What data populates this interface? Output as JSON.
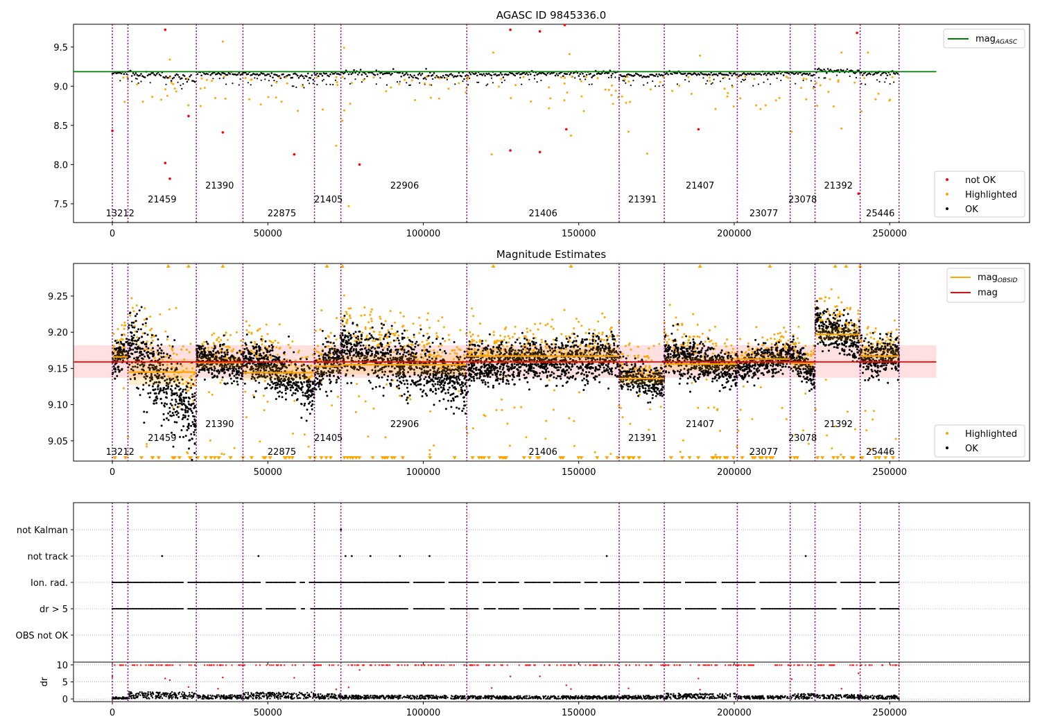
{
  "figure": {
    "title_top": "AGASC ID 9845336.0",
    "title_mid": "Magnitude Estimates"
  },
  "chart_data": [
    {
      "type": "scatter",
      "title": "AGASC ID 9845336.0",
      "xlim": [
        -12500,
        295000
      ],
      "ylim": [
        7.26,
        9.79
      ],
      "x_ticks": [
        0,
        50000,
        100000,
        150000,
        200000,
        250000
      ],
      "y_ticks": [
        7.5,
        8.0,
        8.5,
        9.0,
        9.5
      ],
      "reference_line": {
        "name": "mag_AGASC",
        "value": 9.185,
        "x_range": [
          -12500,
          265000
        ],
        "color": "#008000"
      },
      "legend_lines": [
        {
          "label": "mag",
          "sub": "AGASC",
          "color": "#008000"
        }
      ],
      "legend_points": [
        {
          "label": "not OK",
          "color": "#ff0000"
        },
        {
          "label": "Highlighted",
          "color": "#ffa500"
        },
        {
          "label": "OK",
          "color": "#000000"
        }
      ],
      "not_ok_points": [
        [
          0,
          8.43
        ],
        [
          17000,
          9.72
        ],
        [
          17000,
          8.02
        ],
        [
          18500,
          7.82
        ],
        [
          24500,
          8.62
        ],
        [
          35500,
          8.41
        ],
        [
          58500,
          8.13
        ],
        [
          79500,
          8.0
        ],
        [
          128000,
          9.72
        ],
        [
          128000,
          8.18
        ],
        [
          137500,
          9.7
        ],
        [
          137500,
          8.16
        ],
        [
          145500,
          9.78
        ],
        [
          146000,
          8.45
        ],
        [
          188500,
          8.45
        ],
        [
          239500,
          9.68
        ],
        [
          240000,
          7.63
        ]
      ],
      "highlighted_outliers": [
        [
          18500,
          9.34
        ],
        [
          35500,
          9.57
        ],
        [
          74500,
          9.49
        ],
        [
          74000,
          8.56
        ],
        [
          76000,
          7.47
        ],
        [
          72000,
          8.24
        ],
        [
          122000,
          8.13
        ],
        [
          122500,
          9.43
        ],
        [
          147000,
          9.41
        ],
        [
          147500,
          8.37
        ],
        [
          166000,
          8.42
        ],
        [
          172000,
          8.14
        ],
        [
          189000,
          9.39
        ],
        [
          218500,
          8.42
        ],
        [
          234500,
          9.43
        ],
        [
          234500,
          8.46
        ],
        [
          243000,
          9.43
        ]
      ]
    },
    {
      "type": "scatter",
      "title": "Magnitude Estimates",
      "xlim": [
        -12500,
        295000
      ],
      "ylim": [
        9.022,
        9.295
      ],
      "x_ticks": [
        0,
        50000,
        100000,
        150000,
        200000,
        250000
      ],
      "y_ticks": [
        9.05,
        9.1,
        9.15,
        9.2,
        9.25
      ],
      "mag": {
        "value": 9.159,
        "band": [
          9.137,
          9.182
        ],
        "x_range": [
          -12500,
          265000
        ],
        "color": "#ff0000"
      },
      "legend_lines": [
        {
          "label": "mag",
          "sub": "OBSID",
          "color": "#ffa500"
        },
        {
          "label": "mag",
          "sub": "",
          "color": "#ff0000"
        }
      ],
      "legend_points": [
        {
          "label": "Highlighted",
          "color": "#ffa500"
        },
        {
          "label": "OK",
          "color": "#000000"
        }
      ],
      "obsids": [
        {
          "id": "13212",
          "x0": 0,
          "x1": 5000,
          "mag": 9.166,
          "sd": 0.013,
          "start": 9.163,
          "end": 9.172,
          "hi": 9.19
        },
        {
          "id": "21459",
          "x0": 5000,
          "x1": 27000,
          "mag": 9.145,
          "sd": 0.03,
          "start": 9.185,
          "end": 9.085,
          "hi": 9.22
        },
        {
          "id": "21390",
          "x0": 27000,
          "x1": 42000,
          "mag": 9.158,
          "sd": 0.013,
          "start": 9.165,
          "end": 9.15,
          "hi": 9.2
        },
        {
          "id": "22875",
          "x0": 42000,
          "x1": 65000,
          "mag": 9.144,
          "sd": 0.018,
          "start": 9.165,
          "end": 9.12,
          "hi": 9.21
        },
        {
          "id": "21405",
          "x0": 65000,
          "x1": 73500,
          "mag": 9.153,
          "sd": 0.018,
          "start": 9.145,
          "end": 9.165,
          "hi": 9.19
        },
        {
          "id": "22906",
          "x0": 73500,
          "x1": 114000,
          "mag": 9.155,
          "sd": 0.022,
          "start": 9.18,
          "end": 9.13,
          "hi": 9.23
        },
        {
          "id": "21406",
          "x0": 114000,
          "x1": 163000,
          "mag": 9.167,
          "sd": 0.017,
          "start": 9.155,
          "end": 9.165,
          "hi": 9.235
        },
        {
          "id": "21391",
          "x0": 163000,
          "x1": 177500,
          "mag": 9.136,
          "sd": 0.013,
          "start": 9.14,
          "end": 9.13,
          "hi": 9.18
        },
        {
          "id": "21407",
          "x0": 177500,
          "x1": 201000,
          "mag": 9.156,
          "sd": 0.015,
          "start": 9.17,
          "end": 9.145,
          "hi": 9.22
        },
        {
          "id": "23077",
          "x0": 201000,
          "x1": 218000,
          "mag": 9.163,
          "sd": 0.012,
          "start": 9.15,
          "end": 9.17,
          "hi": 9.205
        },
        {
          "id": "23078",
          "x0": 218000,
          "x1": 226000,
          "mag": 9.157,
          "sd": 0.012,
          "start": 9.17,
          "end": 9.14,
          "hi": 9.2
        },
        {
          "id": "21392",
          "x0": 226000,
          "x1": 240500,
          "mag": 9.197,
          "sd": 0.015,
          "start": 9.21,
          "end": 9.185,
          "hi": 9.25
        },
        {
          "id": "25446",
          "x0": 240500,
          "x1": 253000,
          "mag": 9.167,
          "sd": 0.015,
          "start": 9.16,
          "end": 9.17,
          "hi": 9.215
        }
      ],
      "obsid_label_rows": [
        {
          "id": "13212",
          "x": 2500,
          "row": 2
        },
        {
          "id": "21459",
          "x": 16000,
          "row": 1
        },
        {
          "id": "21390",
          "x": 34500,
          "row": 0
        },
        {
          "id": "22875",
          "x": 54500,
          "row": 2
        },
        {
          "id": "21405",
          "x": 69500,
          "row": 1
        },
        {
          "id": "22906",
          "x": 94000,
          "row": 0
        },
        {
          "id": "21406",
          "x": 138500,
          "row": 2
        },
        {
          "id": "21391",
          "x": 170500,
          "row": 1
        },
        {
          "id": "21407",
          "x": 189000,
          "row": 0
        },
        {
          "id": "23077",
          "x": 209500,
          "row": 2
        },
        {
          "id": "23078",
          "x": 222000,
          "row": 1
        },
        {
          "id": "21392",
          "x": 233500,
          "row": 0
        },
        {
          "id": "25446",
          "x": 247000,
          "row": 2
        }
      ],
      "obsid_boundaries": [
        0,
        5000,
        27000,
        42000,
        65000,
        73500,
        114000,
        163000,
        177500,
        201000,
        218000,
        226000,
        240500,
        253000
      ]
    },
    {
      "type": "scatter",
      "title": "",
      "xlim": [
        -12500,
        295000
      ],
      "flag_rows": [
        "not Kalman",
        "not track",
        "Ion. rad.",
        "dr > 5",
        "OBS not OK"
      ],
      "flag_points": {
        "not Kalman": [
          73500
        ],
        "not track": [
          16000,
          47000,
          75000,
          77000,
          83000,
          92500,
          102000,
          159000,
          223000
        ],
        "Ion. rad.": "dense",
        "dr > 5": "dense",
        "OBS not OK": []
      },
      "flag_gaps": [
        [
          23000,
          24500
        ],
        [
          48000,
          49500
        ],
        [
          59000,
          60500
        ],
        [
          62000,
          63500
        ],
        [
          95500,
          97000
        ],
        [
          107000,
          108500
        ],
        [
          118000,
          119500
        ],
        [
          123500,
          124500
        ],
        [
          131000,
          132500
        ],
        [
          141000,
          142000
        ],
        [
          150500,
          152000
        ],
        [
          156000,
          157000
        ],
        [
          169500,
          171000
        ],
        [
          183000,
          184500
        ],
        [
          194500,
          196000
        ],
        [
          207000,
          208500
        ],
        [
          233000,
          234500
        ],
        [
          245500,
          247000
        ]
      ]
    },
    {
      "type": "scatter",
      "title": "",
      "xlim": [
        -12500,
        295000
      ],
      "ylim": [
        -0.8,
        10.8
      ],
      "ylabel": "dr",
      "x_ticks": [
        0,
        50000,
        100000,
        150000,
        200000,
        250000
      ],
      "y_ticks": [
        0,
        5,
        10
      ],
      "dr_levels": [
        {
          "x0": 0,
          "x1": 5000,
          "level": 0.5
        },
        {
          "x0": 5000,
          "x1": 27000,
          "level": 1.8
        },
        {
          "x0": 27000,
          "x1": 42000,
          "level": 1.0
        },
        {
          "x0": 42000,
          "x1": 65000,
          "level": 1.7
        },
        {
          "x0": 65000,
          "x1": 73500,
          "level": 1.3
        },
        {
          "x0": 73500,
          "x1": 114000,
          "level": 0.9
        },
        {
          "x0": 114000,
          "x1": 163000,
          "level": 0.8
        },
        {
          "x0": 163000,
          "x1": 177500,
          "level": 0.9
        },
        {
          "x0": 177500,
          "x1": 201000,
          "level": 1.4
        },
        {
          "x0": 201000,
          "x1": 218000,
          "level": 0.8
        },
        {
          "x0": 218000,
          "x1": 226000,
          "level": 1.3
        },
        {
          "x0": 226000,
          "x1": 240500,
          "level": 1.1
        },
        {
          "x0": 240500,
          "x1": 253000,
          "level": 0.9
        }
      ],
      "dr_red_points": [
        [
          0,
          6.5
        ],
        [
          17000,
          6.0
        ],
        [
          18500,
          5.5
        ],
        [
          24500,
          3.5
        ],
        [
          35500,
          6.3
        ],
        [
          58500,
          6.2
        ],
        [
          79500,
          8.5
        ],
        [
          128000,
          6.6
        ],
        [
          137500,
          6.6
        ],
        [
          146000,
          4.0
        ],
        [
          188500,
          6.0
        ],
        [
          218500,
          5.8
        ],
        [
          240000,
          7.5
        ],
        [
          34000,
          3.0
        ],
        [
          72000,
          2.8
        ],
        [
          76000,
          3.4
        ],
        [
          122000,
          3.2
        ],
        [
          147500,
          2.9
        ],
        [
          166000,
          3.1
        ],
        [
          189000,
          2.7
        ],
        [
          234500,
          3.0
        ]
      ]
    }
  ]
}
